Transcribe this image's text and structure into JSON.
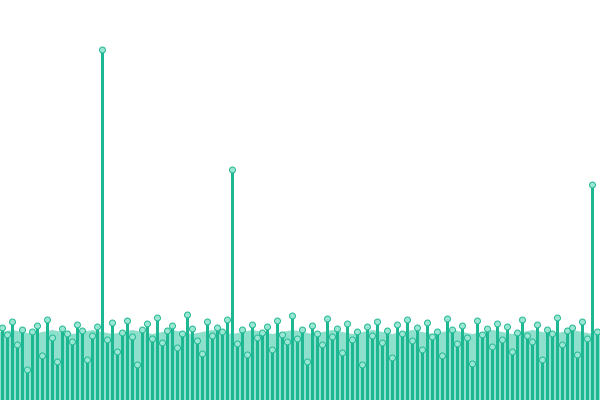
{
  "chart_data": {
    "type": "lollipop",
    "ylim": [
      0,
      400
    ],
    "series": [
      {
        "type": "area",
        "color": "#8ee0cc",
        "values": [
          68,
          69,
          70,
          69,
          68,
          67,
          66,
          67,
          68,
          69,
          70,
          69,
          68,
          67,
          66,
          67,
          68,
          69,
          70,
          69,
          68,
          67,
          66,
          67,
          68,
          69,
          70,
          69,
          68,
          67,
          66,
          67,
          68,
          69,
          70,
          69,
          68,
          67,
          66,
          67,
          68,
          69,
          70,
          69,
          68,
          67,
          66,
          67,
          68,
          69,
          70,
          69,
          68,
          67,
          66,
          67,
          68,
          69,
          70,
          69,
          68,
          67,
          66,
          67,
          68,
          69,
          70,
          69,
          68,
          67,
          66,
          67,
          68,
          69,
          70,
          69,
          68,
          67,
          66,
          67,
          68,
          69,
          70,
          69,
          68,
          67,
          66,
          67,
          68,
          69,
          70,
          69,
          68,
          67,
          66,
          67,
          68,
          69,
          70,
          69,
          68,
          67,
          66,
          67,
          68,
          69,
          70,
          69,
          68,
          67,
          66,
          67,
          68,
          69,
          70,
          69,
          68,
          67,
          66,
          67
        ]
      },
      {
        "type": "lollipop",
        "color": "#1db792",
        "marker_color": "#9be6d2",
        "values": [
          72,
          65,
          78,
          55,
          70,
          30,
          68,
          74,
          44,
          80,
          62,
          38,
          71,
          66,
          58,
          75,
          69,
          40,
          64,
          73,
          350,
          60,
          77,
          48,
          67,
          79,
          63,
          35,
          70,
          76,
          61,
          82,
          57,
          69,
          74,
          52,
          66,
          85,
          71,
          59,
          46,
          78,
          64,
          72,
          68,
          80,
          230,
          56,
          70,
          45,
          75,
          62,
          67,
          73,
          50,
          79,
          65,
          58,
          84,
          61,
          70,
          38,
          74,
          66,
          55,
          81,
          63,
          71,
          47,
          76,
          60,
          68,
          35,
          73,
          64,
          78,
          57,
          69,
          42,
          75,
          66,
          80,
          59,
          72,
          50,
          77,
          63,
          68,
          44,
          81,
          70,
          56,
          74,
          62,
          36,
          79,
          65,
          71,
          53,
          76,
          60,
          73,
          48,
          67,
          80,
          64,
          58,
          75,
          40,
          70,
          66,
          82,
          55,
          69,
          72,
          45,
          78,
          61,
          215,
          68
        ]
      }
    ]
  }
}
